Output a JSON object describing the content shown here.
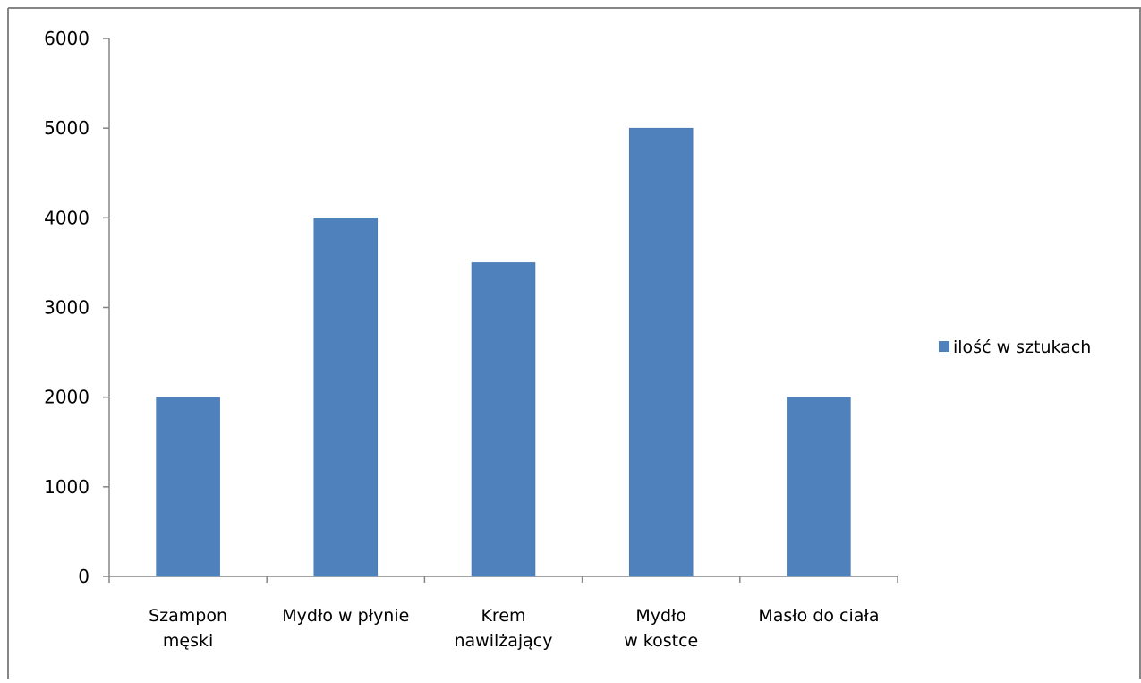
{
  "chart_data": {
    "type": "bar",
    "categories": [
      [
        "Szampon",
        "męski"
      ],
      [
        "Mydło w płynie"
      ],
      [
        "Krem",
        "nawilżający"
      ],
      [
        "Mydło",
        "w kostce"
      ],
      [
        "Masło do ciała"
      ]
    ],
    "series": [
      {
        "name": "ilość w sztukach",
        "values": [
          2000,
          4000,
          3500,
          5000,
          2000
        ],
        "color": "#4F81BD"
      }
    ],
    "y_ticks": [
      "0",
      "1000",
      "2000",
      "3000",
      "4000",
      "5000",
      "6000"
    ],
    "ylim": [
      0,
      6000
    ],
    "legend_position": "right",
    "grid": false
  }
}
